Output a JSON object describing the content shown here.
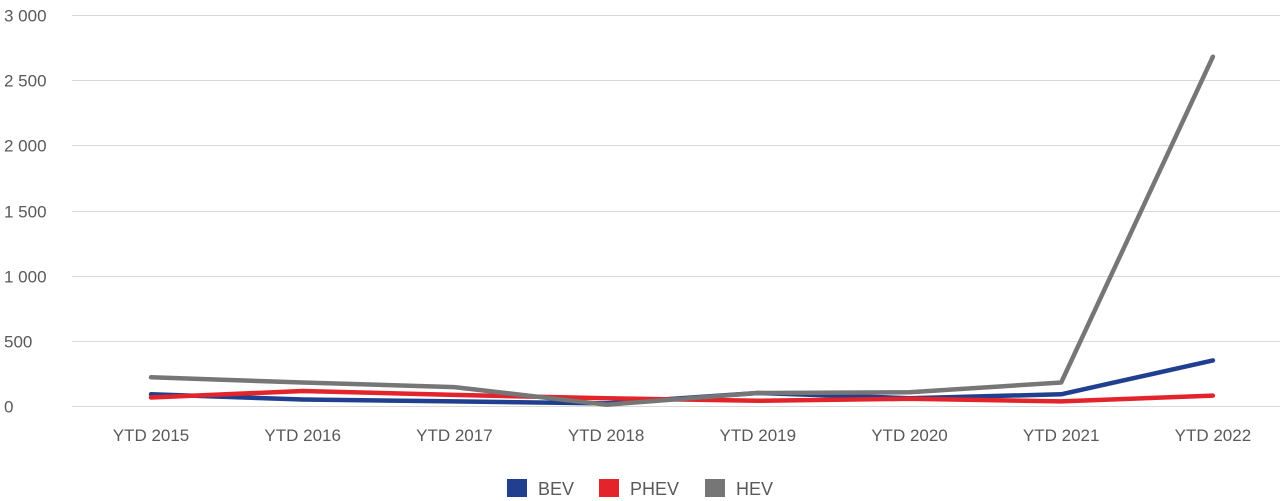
{
  "chart_data": {
    "type": "line",
    "categories": [
      "YTD 2015",
      "YTD 2016",
      "YTD 2017",
      "YTD 2018",
      "YTD 2019",
      "YTD 2020",
      "YTD 2021",
      "YTD 2022"
    ],
    "series": [
      {
        "name": "BEV",
        "color": "#203f8f",
        "values": [
          90,
          50,
          35,
          20,
          100,
          60,
          90,
          350
        ]
      },
      {
        "name": "PHEV",
        "color": "#e3242b",
        "values": [
          65,
          115,
          85,
          60,
          40,
          55,
          35,
          80
        ]
      },
      {
        "name": "HEV",
        "color": "#767676",
        "values": [
          220,
          180,
          145,
          10,
          100,
          105,
          180,
          2680
        ]
      }
    ],
    "ylim": [
      0,
      3000
    ],
    "yticks": [
      0,
      500,
      1000,
      1500,
      2000,
      2500,
      3000
    ],
    "ytick_labels": [
      "0",
      "500",
      "1 000",
      "1 500",
      "2 000",
      "2 500",
      "3 000"
    ],
    "grid": true,
    "legend": "bottom",
    "title": "",
    "xlabel": "",
    "ylabel": ""
  }
}
